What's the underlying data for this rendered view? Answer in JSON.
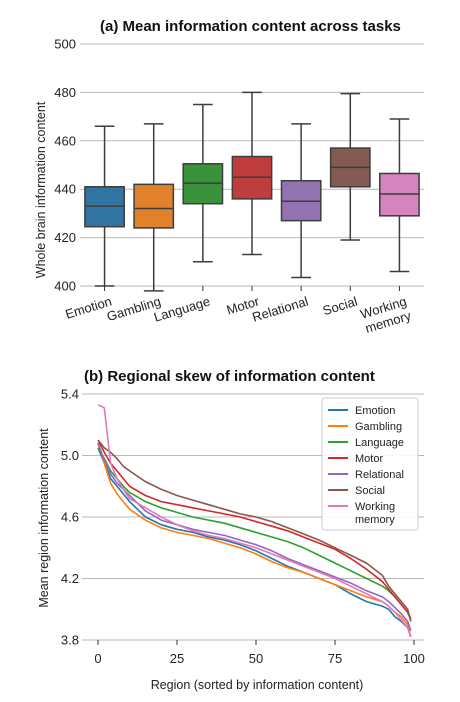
{
  "chart_data": [
    {
      "type": "box",
      "title": "(a) Mean information content across tasks",
      "ylabel": "Whole brain information content",
      "ylim": [
        400,
        500
      ],
      "yticks": [
        "400",
        "420",
        "440",
        "460",
        "480",
        "500"
      ],
      "grid": true,
      "categories": [
        "Emotion",
        "Gambling",
        "Language",
        "Motor",
        "Relational",
        "Social",
        "Working\nmemory"
      ],
      "colors": [
        "#3274a1",
        "#e1812c",
        "#3a923a",
        "#c03d3e",
        "#9372b2",
        "#845b53",
        "#d684bd"
      ],
      "boxes": [
        {
          "min": 400,
          "q1": 424.5,
          "median": 433,
          "q3": 441,
          "max": 466
        },
        {
          "min": 398,
          "q1": 424,
          "median": 432,
          "q3": 442,
          "max": 467
        },
        {
          "min": 410,
          "q1": 434,
          "median": 442.5,
          "q3": 450.5,
          "max": 475
        },
        {
          "min": 413,
          "q1": 436,
          "median": 445,
          "q3": 453.5,
          "max": 480
        },
        {
          "min": 403.5,
          "q1": 427,
          "median": 435,
          "q3": 443.5,
          "max": 467
        },
        {
          "min": 419,
          "q1": 441,
          "median": 449,
          "q3": 457,
          "max": 479.5
        },
        {
          "min": 406,
          "q1": 429,
          "median": 438,
          "q3": 446.5,
          "max": 469
        }
      ]
    },
    {
      "type": "line",
      "title": "(b) Regional skew of information content",
      "xlabel": "Region (sorted by information content)",
      "ylabel": "Mean region information content",
      "xlim": [
        0,
        100
      ],
      "ylim": [
        3.8,
        5.4
      ],
      "xticks": [
        "0",
        "25",
        "50",
        "75",
        "100"
      ],
      "yticks": [
        "3.8",
        "4.2",
        "4.6",
        "5.0",
        "5.4"
      ],
      "grid": true,
      "legend_position": "top-right",
      "x": [
        0,
        2,
        4,
        6,
        8,
        10,
        15,
        20,
        25,
        30,
        35,
        40,
        45,
        50,
        55,
        60,
        65,
        70,
        75,
        80,
        85,
        90,
        92,
        94,
        96,
        98,
        99
      ],
      "series": [
        {
          "name": "Emotion",
          "color": "#1f77b4",
          "values": [
            5.05,
            4.95,
            4.85,
            4.8,
            4.75,
            4.7,
            4.6,
            4.55,
            4.52,
            4.5,
            4.47,
            4.45,
            4.42,
            4.38,
            4.33,
            4.28,
            4.24,
            4.2,
            4.16,
            4.1,
            4.05,
            4.02,
            4.0,
            3.95,
            3.92,
            3.88,
            3.82
          ]
        },
        {
          "name": "Gambling",
          "color": "#ff7f0e",
          "values": [
            5.08,
            4.95,
            4.82,
            4.75,
            4.7,
            4.65,
            4.58,
            4.53,
            4.5,
            4.48,
            4.46,
            4.43,
            4.4,
            4.36,
            4.31,
            4.27,
            4.24,
            4.2,
            4.16,
            4.12,
            4.08,
            4.05,
            4.02,
            3.98,
            3.95,
            3.9,
            3.82
          ]
        },
        {
          "name": "Language",
          "color": "#2ca02c",
          "values": [
            5.05,
            4.98,
            4.9,
            4.85,
            4.8,
            4.76,
            4.7,
            4.66,
            4.63,
            4.6,
            4.58,
            4.56,
            4.53,
            4.5,
            4.47,
            4.44,
            4.4,
            4.35,
            4.3,
            4.25,
            4.2,
            4.15,
            4.12,
            4.08,
            4.03,
            3.98,
            3.94
          ]
        },
        {
          "name": "Motor",
          "color": "#d62728",
          "values": [
            5.1,
            5.02,
            4.95,
            4.9,
            4.85,
            4.8,
            4.74,
            4.7,
            4.68,
            4.66,
            4.64,
            4.62,
            4.6,
            4.57,
            4.54,
            4.51,
            4.47,
            4.43,
            4.39,
            4.33,
            4.26,
            4.18,
            4.13,
            4.08,
            4.03,
            3.98,
            3.93
          ]
        },
        {
          "name": "Relational",
          "color": "#9467bd",
          "values": [
            5.08,
            4.97,
            4.88,
            4.82,
            4.78,
            4.74,
            4.64,
            4.58,
            4.55,
            4.52,
            4.5,
            4.48,
            4.45,
            4.42,
            4.38,
            4.33,
            4.29,
            4.25,
            4.21,
            4.17,
            4.12,
            4.08,
            4.05,
            4.01,
            3.97,
            3.92,
            3.86
          ]
        },
        {
          "name": "Social",
          "color": "#8c564b",
          "values": [
            5.1,
            5.05,
            5.02,
            4.98,
            4.93,
            4.9,
            4.83,
            4.78,
            4.74,
            4.71,
            4.68,
            4.65,
            4.62,
            4.6,
            4.57,
            4.53,
            4.49,
            4.45,
            4.4,
            4.35,
            4.3,
            4.22,
            4.15,
            4.1,
            4.05,
            4.0,
            3.92
          ]
        },
        {
          "name": "Working\nmemory",
          "color": "#e377c2",
          "values": [
            5.33,
            5.31,
            4.95,
            4.85,
            4.78,
            4.72,
            4.66,
            4.6,
            4.55,
            4.51,
            4.48,
            4.46,
            4.43,
            4.4,
            4.36,
            4.32,
            4.28,
            4.24,
            4.2,
            4.15,
            4.1,
            4.05,
            4.02,
            3.98,
            3.93,
            3.88,
            3.82
          ]
        }
      ]
    }
  ]
}
